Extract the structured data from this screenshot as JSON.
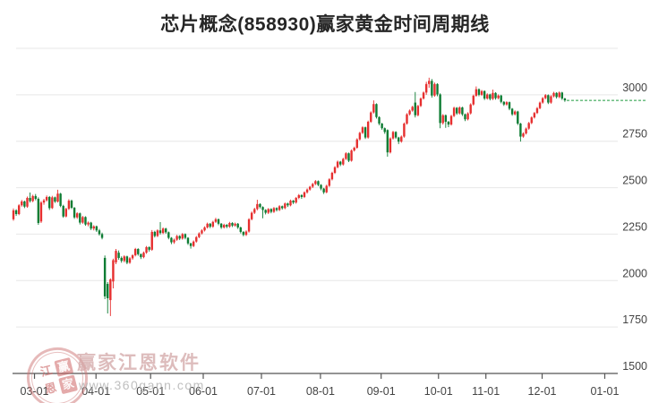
{
  "header": {
    "title": "芯片概念(858930)赢家黄金时间周期线"
  },
  "watermark": {
    "brand": "赢家江恩软件",
    "url": "www.360gann.com",
    "seal_chars": [
      "江",
      "赢",
      "恩",
      "家"
    ]
  },
  "chart_data": {
    "type": "candlestick",
    "title": "芯片概念(858930)赢家黄金时间周期线",
    "symbol": "858930",
    "series_name": "芯片概念",
    "ylim": [
      1500,
      3250
    ],
    "y_ticks": [
      3000,
      2750,
      2500,
      2250,
      2000,
      1750,
      1500
    ],
    "grid_levels": [
      3250,
      3000,
      2750,
      2500,
      2250,
      2000,
      1750
    ],
    "x_ticks": [
      {
        "label": "03-01",
        "i": 7.6
      },
      {
        "label": "04-01",
        "i": 29.8
      },
      {
        "label": "05-01",
        "i": 49.5
      },
      {
        "label": "06-01",
        "i": 68.5
      },
      {
        "label": "07-01",
        "i": 89.5
      },
      {
        "label": "08-01",
        "i": 110.8
      },
      {
        "label": "09-01",
        "i": 132.7
      },
      {
        "label": "10-01",
        "i": 153.4
      },
      {
        "label": "11-01",
        "i": 170.5
      },
      {
        "label": "12-01",
        "i": 190.8
      },
      {
        "label": "01-01",
        "i": 213.4
      }
    ],
    "last_price": 2970,
    "legend": "none",
    "grid": true,
    "colors": {
      "up": "#e62f2f",
      "down": "#0d7c33",
      "grid": "#e7e7e7",
      "axis": "#555555",
      "tick_label": "#444444",
      "last_price_line": "#1d9b3f"
    },
    "candles": [
      [
        2330,
        2388,
        2322,
        2378
      ],
      [
        2378,
        2384,
        2348,
        2358
      ],
      [
        2358,
        2412,
        2352,
        2405
      ],
      [
        2405,
        2434,
        2398,
        2426
      ],
      [
        2426,
        2430,
        2390,
        2398
      ],
      [
        2398,
        2452,
        2392,
        2445
      ],
      [
        2445,
        2474,
        2420,
        2428
      ],
      [
        2428,
        2462,
        2422,
        2455
      ],
      [
        2455,
        2466,
        2432,
        2440
      ],
      [
        2440,
        2448,
        2300,
        2310
      ],
      [
        2318,
        2428,
        2310,
        2420
      ],
      [
        2420,
        2440,
        2408,
        2432
      ],
      [
        2432,
        2458,
        2425,
        2450
      ],
      [
        2450,
        2455,
        2380,
        2390
      ],
      [
        2390,
        2456,
        2385,
        2448
      ],
      [
        2448,
        2452,
        2418,
        2425
      ],
      [
        2425,
        2489,
        2420,
        2468
      ],
      [
        2468,
        2472,
        2395,
        2402
      ],
      [
        2402,
        2408,
        2338,
        2345
      ],
      [
        2345,
        2392,
        2340,
        2386
      ],
      [
        2386,
        2438,
        2380,
        2430
      ],
      [
        2430,
        2436,
        2385,
        2392
      ],
      [
        2392,
        2396,
        2332,
        2340
      ],
      [
        2340,
        2368,
        2332,
        2362
      ],
      [
        2362,
        2366,
        2302,
        2312
      ],
      [
        2312,
        2348,
        2306,
        2342
      ],
      [
        2342,
        2346,
        2295,
        2302
      ],
      [
        2302,
        2318,
        2292,
        2312
      ],
      [
        2312,
        2316,
        2272,
        2280
      ],
      [
        2280,
        2298,
        2270,
        2292
      ],
      [
        2292,
        2296,
        2262,
        2270
      ],
      [
        2270,
        2278,
        2242,
        2250
      ],
      [
        2250,
        2258,
        2222,
        2230
      ],
      [
        2122,
        2135,
        1900,
        1915
      ],
      [
        1982,
        1992,
        1823,
        1905
      ],
      [
        1895,
        2012,
        1809,
        2006
      ],
      [
        1995,
        2118,
        1958,
        2110
      ],
      [
        2098,
        2170,
        2088,
        2160
      ],
      [
        2150,
        2162,
        2112,
        2122
      ],
      [
        2122,
        2130,
        2096,
        2106
      ],
      [
        2106,
        2136,
        2098,
        2130
      ],
      [
        2130,
        2134,
        2088,
        2096
      ],
      [
        2096,
        2126,
        2090,
        2120
      ],
      [
        2120,
        2142,
        2112,
        2136
      ],
      [
        2136,
        2176,
        2130,
        2170
      ],
      [
        2170,
        2174,
        2134,
        2142
      ],
      [
        2142,
        2146,
        2116,
        2126
      ],
      [
        2126,
        2156,
        2120,
        2150
      ],
      [
        2150,
        2186,
        2144,
        2180
      ],
      [
        2180,
        2184,
        2156,
        2166
      ],
      [
        2166,
        2272,
        2160,
        2262
      ],
      [
        2262,
        2268,
        2232,
        2240
      ],
      [
        2240,
        2276,
        2234,
        2270
      ],
      [
        2270,
        2315,
        2248,
        2256
      ],
      [
        2256,
        2286,
        2250,
        2280
      ],
      [
        2280,
        2284,
        2252,
        2260
      ],
      [
        2260,
        2264,
        2222,
        2230
      ],
      [
        2230,
        2234,
        2196,
        2206
      ],
      [
        2206,
        2226,
        2198,
        2220
      ],
      [
        2220,
        2246,
        2214,
        2240
      ],
      [
        2240,
        2244,
        2218,
        2226
      ],
      [
        2226,
        2256,
        2220,
        2250
      ],
      [
        2250,
        2254,
        2222,
        2230
      ],
      [
        2230,
        2234,
        2192,
        2200
      ],
      [
        2200,
        2204,
        2172,
        2186
      ],
      [
        2186,
        2216,
        2180,
        2210
      ],
      [
        2210,
        2240,
        2204,
        2234
      ],
      [
        2234,
        2260,
        2228,
        2254
      ],
      [
        2254,
        2276,
        2248,
        2270
      ],
      [
        2270,
        2292,
        2264,
        2286
      ],
      [
        2286,
        2312,
        2280,
        2306
      ],
      [
        2306,
        2310,
        2282,
        2290
      ],
      [
        2290,
        2322,
        2284,
        2316
      ],
      [
        2316,
        2338,
        2310,
        2330
      ],
      [
        2330,
        2334,
        2298,
        2306
      ],
      [
        2306,
        2310,
        2278,
        2286
      ],
      [
        2286,
        2306,
        2280,
        2300
      ],
      [
        2300,
        2304,
        2282,
        2290
      ],
      [
        2290,
        2316,
        2284,
        2310
      ],
      [
        2310,
        2314,
        2288,
        2296
      ],
      [
        2296,
        2312,
        2290,
        2306
      ],
      [
        2306,
        2310,
        2278,
        2286
      ],
      [
        2286,
        2290,
        2254,
        2262
      ],
      [
        2262,
        2266,
        2238,
        2246
      ],
      [
        2246,
        2270,
        2240,
        2264
      ],
      [
        2264,
        2336,
        2258,
        2330
      ],
      [
        2330,
        2372,
        2324,
        2365
      ],
      [
        2365,
        2392,
        2358,
        2385
      ],
      [
        2385,
        2435,
        2378,
        2412
      ],
      [
        2412,
        2416,
        2388,
        2396
      ],
      [
        2396,
        2400,
        2335,
        2380
      ],
      [
        2380,
        2384,
        2356,
        2365
      ],
      [
        2365,
        2390,
        2358,
        2385
      ],
      [
        2385,
        2389,
        2362,
        2370
      ],
      [
        2370,
        2396,
        2364,
        2390
      ],
      [
        2390,
        2394,
        2372,
        2380
      ],
      [
        2380,
        2406,
        2374,
        2400
      ],
      [
        2400,
        2404,
        2382,
        2390
      ],
      [
        2390,
        2420,
        2384,
        2415
      ],
      [
        2415,
        2419,
        2396,
        2405
      ],
      [
        2405,
        2436,
        2400,
        2430
      ],
      [
        2430,
        2434,
        2412,
        2420
      ],
      [
        2420,
        2450,
        2414,
        2445
      ],
      [
        2445,
        2466,
        2438,
        2460
      ],
      [
        2460,
        2464,
        2440,
        2450
      ],
      [
        2450,
        2480,
        2444,
        2475
      ],
      [
        2475,
        2496,
        2468,
        2490
      ],
      [
        2490,
        2510,
        2484,
        2505
      ],
      [
        2505,
        2526,
        2498,
        2520
      ],
      [
        2520,
        2541,
        2514,
        2535
      ],
      [
        2535,
        2539,
        2508,
        2515
      ],
      [
        2515,
        2519,
        2486,
        2495
      ],
      [
        2495,
        2499,
        2466,
        2475
      ],
      [
        2475,
        2516,
        2470,
        2510
      ],
      [
        2510,
        2551,
        2504,
        2545
      ],
      [
        2545,
        2586,
        2539,
        2580
      ],
      [
        2580,
        2616,
        2574,
        2610
      ],
      [
        2610,
        2646,
        2604,
        2640
      ],
      [
        2640,
        2644,
        2616,
        2625
      ],
      [
        2625,
        2661,
        2619,
        2655
      ],
      [
        2655,
        2691,
        2649,
        2685
      ],
      [
        2685,
        2689,
        2638,
        2645
      ],
      [
        2645,
        2706,
        2640,
        2700
      ],
      [
        2700,
        2721,
        2694,
        2715
      ],
      [
        2715,
        2766,
        2709,
        2760
      ],
      [
        2760,
        2801,
        2754,
        2795
      ],
      [
        2795,
        2831,
        2789,
        2825
      ],
      [
        2825,
        2829,
        2762,
        2770
      ],
      [
        2770,
        2861,
        2764,
        2855
      ],
      [
        2855,
        2911,
        2849,
        2905
      ],
      [
        2905,
        2970,
        2899,
        2950
      ],
      [
        2950,
        2954,
        2872,
        2880
      ],
      [
        2880,
        2884,
        2836,
        2845
      ],
      [
        2845,
        2849,
        2812,
        2820
      ],
      [
        2820,
        2824,
        2790,
        2800
      ],
      [
        2810,
        2814,
        2667,
        2690
      ],
      [
        2690,
        2771,
        2684,
        2765
      ],
      [
        2765,
        2806,
        2759,
        2800
      ],
      [
        2800,
        2804,
        2762,
        2770
      ],
      [
        2770,
        2774,
        2735,
        2748
      ],
      [
        2748,
        2781,
        2742,
        2775
      ],
      [
        2775,
        2851,
        2769,
        2845
      ],
      [
        2845,
        2901,
        2839,
        2895
      ],
      [
        2895,
        2921,
        2889,
        2915
      ],
      [
        2915,
        2941,
        2909,
        2935
      ],
      [
        2958,
        3015,
        2878,
        2890
      ],
      [
        2890,
        2946,
        2884,
        2940
      ],
      [
        2940,
        2986,
        2934,
        2980
      ],
      [
        2980,
        3018,
        2974,
        3012
      ],
      [
        3012,
        3070,
        3000,
        3058
      ],
      [
        3058,
        3092,
        3038,
        3075
      ],
      [
        3075,
        3085,
        2985,
        2996
      ],
      [
        2996,
        3066,
        2990,
        3058
      ],
      [
        3058,
        3062,
        2992,
        3002
      ],
      [
        3002,
        3008,
        2820,
        2848
      ],
      [
        2848,
        2896,
        2840,
        2890
      ],
      [
        2890,
        2894,
        2822,
        2855
      ],
      [
        2855,
        2859,
        2826,
        2840
      ],
      [
        2840,
        2892,
        2834,
        2886
      ],
      [
        2886,
        2936,
        2880,
        2930
      ],
      [
        2930,
        2934,
        2892,
        2900
      ],
      [
        2900,
        2938,
        2894,
        2932
      ],
      [
        2932,
        2936,
        2886,
        2895
      ],
      [
        2895,
        2899,
        2858,
        2868
      ],
      [
        2868,
        2906,
        2862,
        2900
      ],
      [
        2900,
        2954,
        2894,
        2948
      ],
      [
        2948,
        3001,
        2942,
        2995
      ],
      [
        2995,
        3045,
        2989,
        3030
      ],
      [
        3030,
        3034,
        2992,
        3000
      ],
      [
        3000,
        3026,
        2994,
        3020
      ],
      [
        3020,
        3024,
        2972,
        2980
      ],
      [
        2980,
        3008,
        2974,
        3002
      ],
      [
        3002,
        3006,
        2970,
        2978
      ],
      [
        2978,
        3028,
        2972,
        3010
      ],
      [
        3010,
        3014,
        2974,
        2982
      ],
      [
        2982,
        3002,
        2976,
        2996
      ],
      [
        2996,
        3000,
        2954,
        2962
      ],
      [
        2962,
        2966,
        2940,
        2948
      ],
      [
        2948,
        2966,
        2942,
        2960
      ],
      [
        2960,
        2964,
        2917,
        2925
      ],
      [
        2925,
        2929,
        2887,
        2895
      ],
      [
        2895,
        2916,
        2889,
        2910
      ],
      [
        2910,
        2914,
        2837,
        2845
      ],
      [
        2845,
        2849,
        2748,
        2775
      ],
      [
        2775,
        2798,
        2769,
        2792
      ],
      [
        2792,
        2824,
        2786,
        2818
      ],
      [
        2818,
        2854,
        2812,
        2848
      ],
      [
        2848,
        2884,
        2842,
        2878
      ],
      [
        2878,
        2908,
        2872,
        2902
      ],
      [
        2902,
        2934,
        2896,
        2928
      ],
      [
        2928,
        2964,
        2922,
        2958
      ],
      [
        2958,
        2988,
        2952,
        2982
      ],
      [
        2982,
        3004,
        2976,
        2998
      ],
      [
        2998,
        3002,
        2950,
        2958
      ],
      [
        2958,
        2998,
        2952,
        2992
      ],
      [
        2992,
        3016,
        2986,
        3010
      ],
      [
        3010,
        3014,
        2980,
        2988
      ],
      [
        2988,
        3018,
        2982,
        3012
      ],
      [
        3012,
        3016,
        2972,
        2980
      ],
      [
        2980,
        2984,
        2962,
        2970
      ]
    ]
  }
}
